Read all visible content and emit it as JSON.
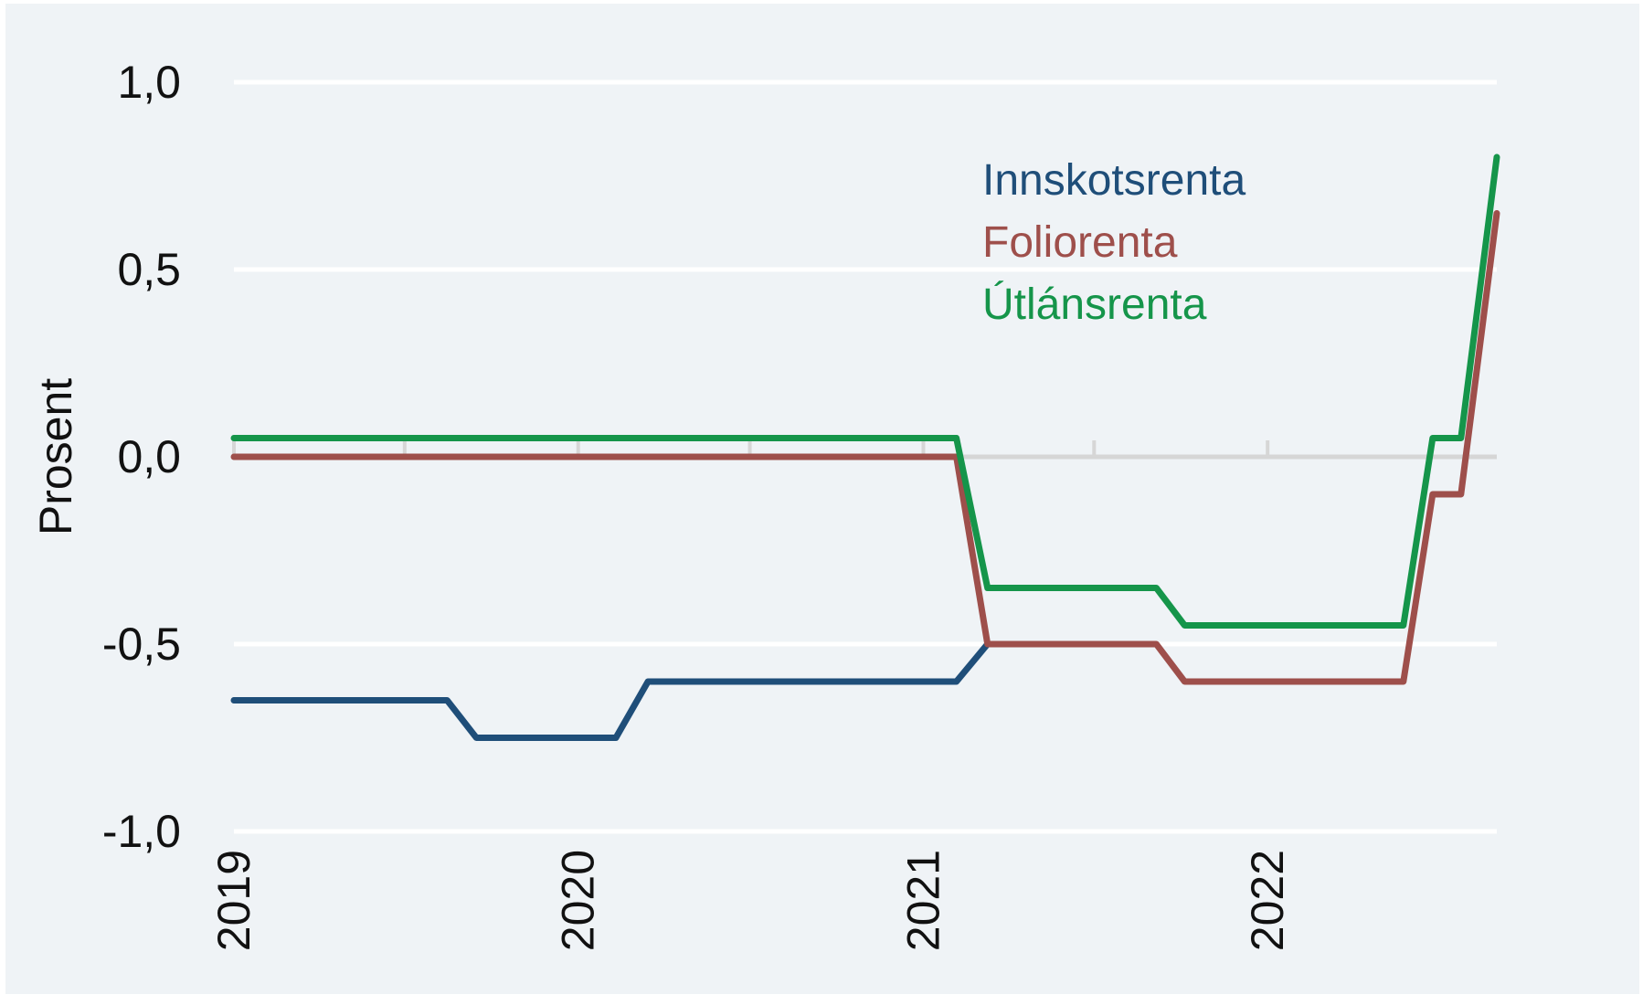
{
  "chart_data": {
    "type": "line",
    "title": "",
    "xlabel": "",
    "ylabel": "Prosent",
    "ylim": [
      -1.0,
      1.0
    ],
    "xlim": [
      "2019-01-01",
      "2022-09-01"
    ],
    "yticks": [
      1.0,
      0.5,
      0.0,
      -0.5,
      -1.0
    ],
    "ytick_labels": [
      "1,0",
      "0,5",
      "0,0",
      "-0,5",
      "-1,0"
    ],
    "xtick_labels": [
      "2019",
      "2020",
      "2021",
      "2022"
    ],
    "xtick_dates": [
      "2019-01-01",
      "2020-01-01",
      "2021-01-01",
      "2022-01-01"
    ],
    "minor_xtick_dates": [
      "2019-07-01",
      "2020-07-01",
      "2021-07-01"
    ],
    "grid": "horizontal",
    "legend_position": "top-right",
    "background_color": "#eff3f6",
    "series": [
      {
        "name": "Innskotsrenta",
        "color": "#1f4e79",
        "points": [
          [
            "2019-01-01",
            -0.65
          ],
          [
            "2019-08-15",
            -0.65
          ],
          [
            "2019-09-15",
            -0.75
          ],
          [
            "2020-02-10",
            -0.75
          ],
          [
            "2020-03-15",
            -0.6
          ],
          [
            "2021-02-05",
            -0.6
          ],
          [
            "2021-03-10",
            -0.5
          ]
        ]
      },
      {
        "name": "Foliorenta",
        "color": "#9e4f4b",
        "points": [
          [
            "2019-01-01",
            0.0
          ],
          [
            "2021-02-05",
            0.0
          ],
          [
            "2021-03-10",
            -0.5
          ],
          [
            "2021-09-05",
            -0.5
          ],
          [
            "2021-10-05",
            -0.6
          ],
          [
            "2022-05-25",
            -0.6
          ],
          [
            "2022-06-25",
            -0.1
          ],
          [
            "2022-07-25",
            -0.1
          ],
          [
            "2022-09-01",
            0.65
          ]
        ]
      },
      {
        "name": "Útlánsrenta",
        "color": "#15954a",
        "points": [
          [
            "2019-01-01",
            0.05
          ],
          [
            "2021-02-05",
            0.05
          ],
          [
            "2021-03-10",
            -0.35
          ],
          [
            "2021-09-05",
            -0.35
          ],
          [
            "2021-10-05",
            -0.45
          ],
          [
            "2022-05-25",
            -0.45
          ],
          [
            "2022-06-25",
            0.05
          ],
          [
            "2022-07-25",
            0.05
          ],
          [
            "2022-09-01",
            0.8
          ]
        ]
      }
    ]
  }
}
